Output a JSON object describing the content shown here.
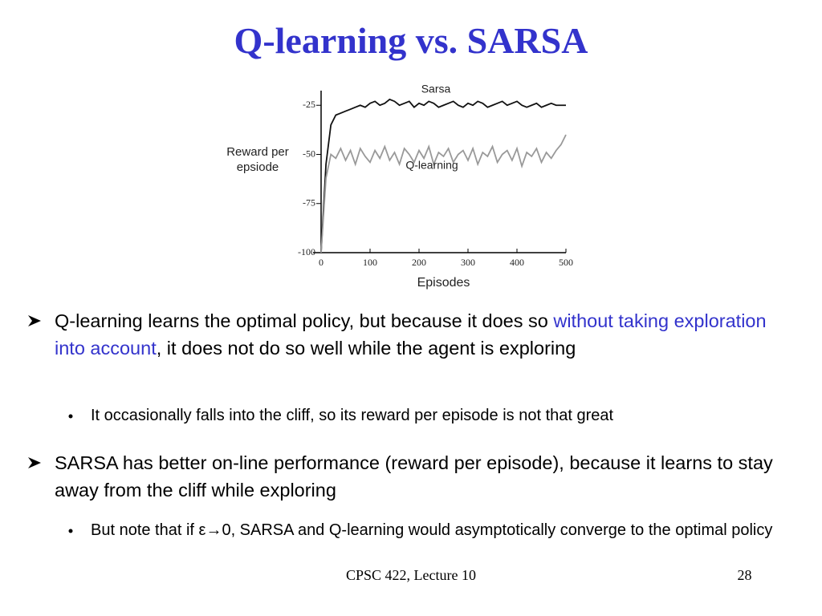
{
  "title": "Q-learning vs. SARSA",
  "chart_data": {
    "type": "line",
    "xlabel": "Episodes",
    "ylabel": "Reward per epsiode",
    "x": [
      0,
      10,
      20,
      30,
      40,
      50,
      60,
      70,
      80,
      90,
      100,
      110,
      120,
      130,
      140,
      150,
      160,
      170,
      180,
      190,
      200,
      210,
      220,
      230,
      240,
      250,
      260,
      270,
      280,
      290,
      300,
      310,
      320,
      330,
      340,
      350,
      360,
      370,
      380,
      390,
      400,
      410,
      420,
      430,
      440,
      450,
      460,
      470,
      480,
      490,
      500
    ],
    "series": [
      {
        "name": "Sarsa",
        "color": "#111111",
        "values": [
          -100,
          -55,
          -35,
          -30,
          -29,
          -28,
          -27,
          -26,
          -25,
          -26,
          -24,
          -23,
          -25,
          -24,
          -22,
          -23,
          -25,
          -24,
          -23,
          -26,
          -24,
          -25,
          -23,
          -24,
          -26,
          -25,
          -24,
          -23,
          -25,
          -26,
          -24,
          -25,
          -23,
          -24,
          -26,
          -25,
          -24,
          -23,
          -25,
          -24,
          -23,
          -25,
          -26,
          -25,
          -24,
          -26,
          -25,
          -24,
          -25,
          -25,
          -25
        ]
      },
      {
        "name": "Q-learning",
        "color": "#999999",
        "values": [
          -100,
          -62,
          -50,
          -52,
          -47,
          -53,
          -48,
          -55,
          -47,
          -51,
          -54,
          -48,
          -52,
          -46,
          -53,
          -49,
          -55,
          -47,
          -50,
          -54,
          -48,
          -52,
          -46,
          -55,
          -49,
          -51,
          -47,
          -54,
          -50,
          -48,
          -53,
          -47,
          -55,
          -49,
          -51,
          -46,
          -54,
          -50,
          -48,
          -53,
          -47,
          -56,
          -49,
          -51,
          -47,
          -54,
          -49,
          -52,
          -48,
          -45,
          -40
        ]
      }
    ],
    "xlim": [
      0,
      500
    ],
    "xticks": [
      0,
      100,
      200,
      300,
      400,
      500
    ],
    "ylim": [
      -100,
      -20
    ],
    "yticks": [
      -100,
      -75,
      -50,
      -25
    ]
  },
  "bullets": [
    {
      "text_parts": [
        "Q-learning learns the optimal policy, but because it does so ",
        "without taking exploration into account",
        ", it does not do so well while the agent is exploring"
      ],
      "sub": [
        "It occasionally falls into the cliff, so its reward per episode is not that great"
      ]
    },
    {
      "text_parts": [
        "SARSA has better on-line performance (reward per episode), because it learns to stay away from the cliff while exploring"
      ],
      "sub": [
        "But note that if ε→0, SARSA and Q-learning would asymptotically converge to the  optimal policy"
      ]
    }
  ],
  "footer": {
    "course": "CPSC 422, Lecture 10",
    "page": 28
  }
}
